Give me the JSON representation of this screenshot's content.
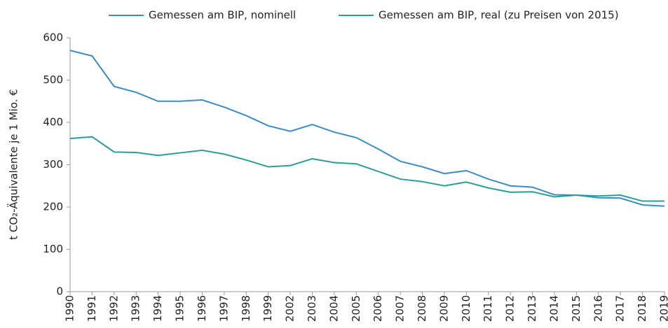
{
  "chart_data": {
    "type": "line",
    "ylabel": "t CO₂-Äquivalente je 1 Mio. €",
    "categories": [
      "1990",
      "1991",
      "1992",
      "1993",
      "1994",
      "1995",
      "1996",
      "1997",
      "1998",
      "1999",
      "2002",
      "2003",
      "2004",
      "2005",
      "2006",
      "2007",
      "2008",
      "2009",
      "2010",
      "2011",
      "2012",
      "2013",
      "2014",
      "2015",
      "2016",
      "2017",
      "2018",
      "2019"
    ],
    "series": [
      {
        "name": "Gemessen am BIP, nominell",
        "color": "#3a8cc8",
        "values": [
          570,
          557,
          485,
          471,
          450,
          450,
          453,
          436,
          416,
          392,
          379,
          395,
          377,
          364,
          337,
          308,
          295,
          279,
          286,
          266,
          250,
          247,
          229,
          228,
          222,
          221,
          205,
          202
        ]
      },
      {
        "name": "Gemessen am BIP, real (zu Preisen von 2015)",
        "color": "#2a9d9b",
        "values": [
          362,
          366,
          330,
          329,
          322,
          328,
          334,
          325,
          311,
          295,
          298,
          314,
          305,
          302,
          284,
          266,
          260,
          250,
          259,
          245,
          235,
          236,
          224,
          228,
          226,
          228,
          214,
          214
        ]
      }
    ],
    "ylim": [
      0,
      600
    ],
    "yticks": [
      0,
      100,
      200,
      300,
      400,
      500,
      600
    ],
    "grid": false,
    "legend": "top"
  }
}
